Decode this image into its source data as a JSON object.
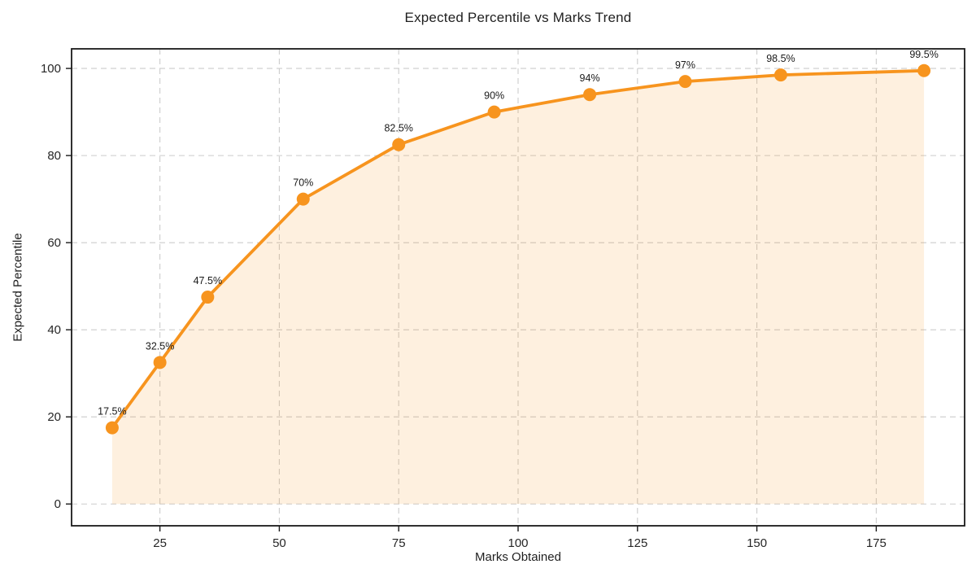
{
  "chart_data": {
    "type": "line",
    "title": "Expected Percentile vs Marks Trend",
    "xlabel": "Marks Obtained",
    "ylabel": "Expected Percentile",
    "x": [
      15,
      25,
      35,
      55,
      75,
      95,
      115,
      135,
      155,
      185
    ],
    "y": [
      17.5,
      32.5,
      47.5,
      70,
      82.5,
      90,
      94,
      97,
      98.5,
      99.5
    ],
    "point_labels": [
      "17.5%",
      "32.5%",
      "47.5%",
      "70%",
      "82.5%",
      "90%",
      "94%",
      "97%",
      "98.5%",
      "99.5%"
    ],
    "xticks": [
      25,
      50,
      75,
      100,
      125,
      150,
      175
    ],
    "yticks": [
      0,
      20,
      40,
      60,
      80,
      100
    ],
    "xlim": [
      6.5,
      193.5
    ],
    "ylim": [
      -5,
      104.5
    ],
    "grid": true,
    "grid_style": "dashed",
    "legend_position": "none",
    "area_fill": true,
    "fill_baseline": 0,
    "style": {
      "line_color": "#f7941e",
      "marker_color": "#f7941e",
      "fill_color": "#f7941e",
      "fill_opacity": 0.14,
      "grid_color": "#cccccc",
      "spine_color": "#1a1a1a",
      "tick_color": "#1a1a1a",
      "line_width": 3.8,
      "marker_radius": 8
    }
  }
}
